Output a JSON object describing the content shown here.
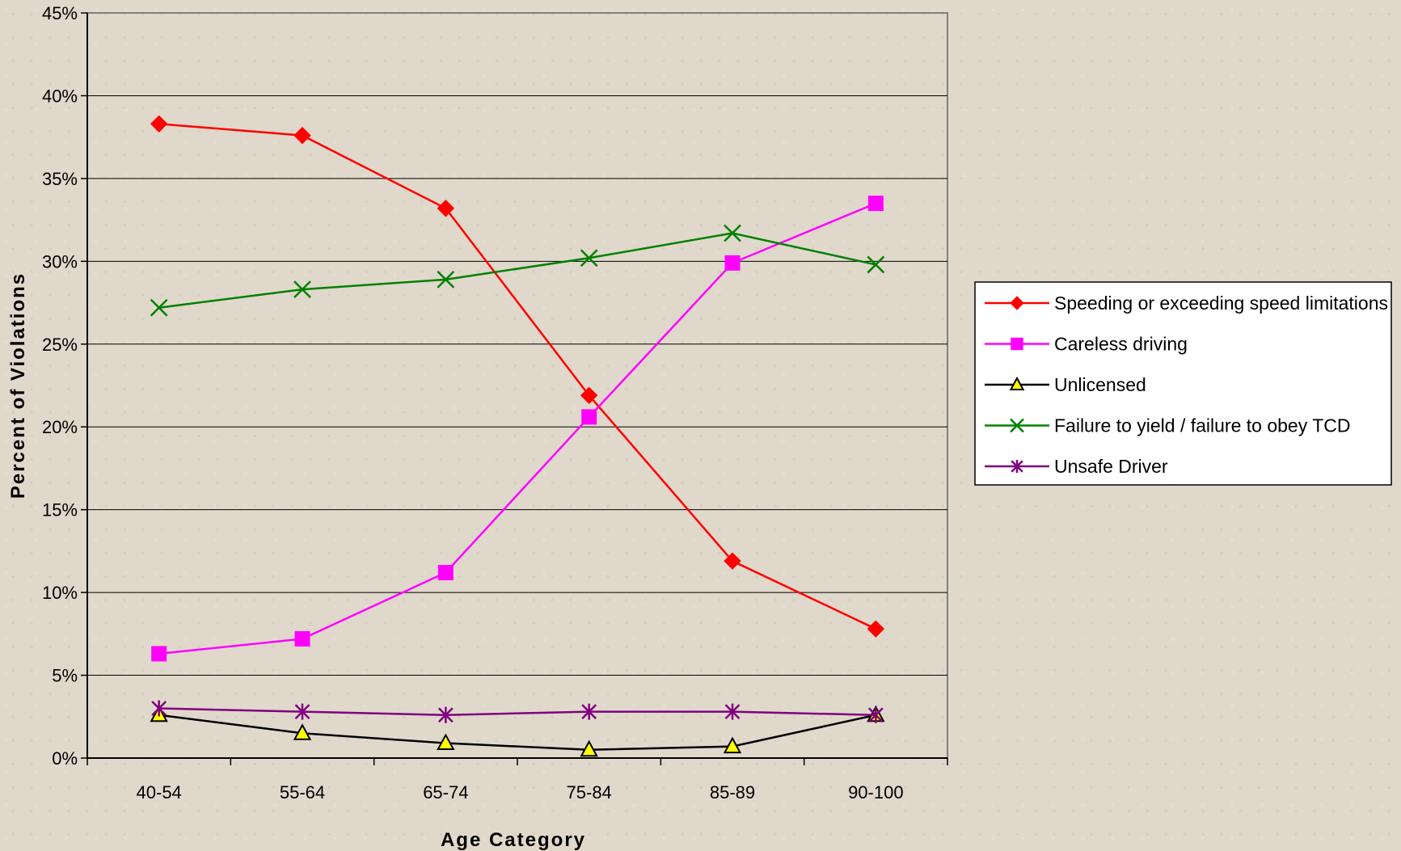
{
  "chart_data": {
    "type": "line",
    "title": "",
    "xlabel": "Age Category",
    "ylabel": "Percent of Violations",
    "categories": [
      "40-54",
      "55-64",
      "65-74",
      "75-84",
      "85-89",
      "90-100"
    ],
    "ylim": [
      0,
      45
    ],
    "yticks": [
      0,
      5,
      10,
      15,
      20,
      25,
      30,
      35,
      40,
      45
    ],
    "ytick_labels": [
      "0%",
      "5%",
      "10%",
      "15%",
      "20%",
      "25%",
      "30%",
      "35%",
      "40%",
      "45%"
    ],
    "grid": true,
    "legend_position": "right",
    "series": [
      {
        "name": "Speeding or exceeding speed limitations",
        "color": "#ff0000",
        "marker": "diamond",
        "marker_fill": "#ff0000",
        "values": [
          38.3,
          37.6,
          33.2,
          21.9,
          11.9,
          7.8
        ]
      },
      {
        "name": "Careless driving",
        "color": "#ff00ff",
        "marker": "square",
        "marker_fill": "#ff00ff",
        "values": [
          6.3,
          7.2,
          11.2,
          20.6,
          29.9,
          33.5
        ]
      },
      {
        "name": "Unlicensed",
        "color": "#000000",
        "marker": "triangle",
        "marker_fill": "#ffff00",
        "values": [
          2.6,
          1.5,
          0.9,
          0.5,
          0.7,
          2.6
        ]
      },
      {
        "name": "Failure to yield / failure to obey TCD",
        "color": "#008000",
        "marker": "x",
        "marker_fill": "none",
        "values": [
          27.2,
          28.3,
          28.9,
          30.2,
          31.7,
          29.8
        ]
      },
      {
        "name": "Unsafe Driver",
        "color": "#800080",
        "marker": "star",
        "marker_fill": "none",
        "values": [
          3.0,
          2.8,
          2.6,
          2.8,
          2.8,
          2.6
        ]
      }
    ]
  }
}
